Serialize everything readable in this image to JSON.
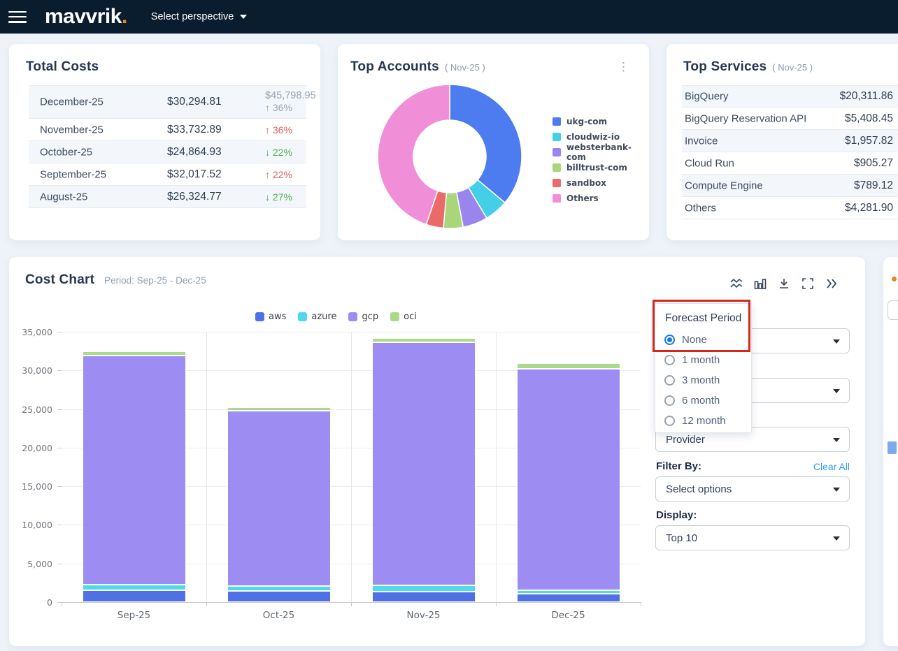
{
  "navbar": {
    "logo": "mavvrik",
    "logo_dot": ".",
    "perspective_label": "Select perspective"
  },
  "total_costs": {
    "title": "Total Costs",
    "rows": [
      {
        "month": "December-25",
        "amount": "$30,294.81",
        "forecast": "$45,798.95",
        "change": "↑ 36%",
        "tone": "muted"
      },
      {
        "month": "November-25",
        "amount": "$33,732.89",
        "change": "↑ 36%",
        "tone": "up"
      },
      {
        "month": "October-25",
        "amount": "$24,864.93",
        "change": "↓ 22%",
        "tone": "down"
      },
      {
        "month": "September-25",
        "amount": "$32,017.52",
        "change": "↑ 22%",
        "tone": "up"
      },
      {
        "month": "August-25",
        "amount": "$26,324.77",
        "change": "↓ 27%",
        "tone": "down"
      }
    ]
  },
  "top_accounts": {
    "title": "Top Accounts",
    "period": "( Nov-25 )",
    "menu_icon": "kebab-menu",
    "chart_data": {
      "type": "pie",
      "donut": true,
      "labels": [
        "ukg-com",
        "cloudwiz-io",
        "websterbank-com",
        "billtrust-com",
        "sandbox",
        "Others"
      ],
      "values_percent": [
        36.1,
        5.3,
        5.6,
        4.4,
        3.9,
        44.7
      ],
      "colors": [
        "#4C7CF0",
        "#44CFE8",
        "#9A85EE",
        "#A9D67A",
        "#E96A68",
        "#F08FD8"
      ],
      "start_angle_deg": 0,
      "legend_position": "right"
    }
  },
  "top_services": {
    "title": "Top Services",
    "period": "( Nov-25 )",
    "rows": [
      {
        "name": "BigQuery",
        "value": "$20,311.86"
      },
      {
        "name": "BigQuery Reservation API",
        "value": "$5,408.45"
      },
      {
        "name": "Invoice",
        "value": "$1,957.82"
      },
      {
        "name": "Cloud Run",
        "value": "$905.27"
      },
      {
        "name": "Compute Engine",
        "value": "$789.12"
      },
      {
        "name": "Others",
        "value": "$4,281.90"
      }
    ]
  },
  "cost_chart": {
    "title": "Cost Chart",
    "period_label": "Period: Sep-25 - Dec-25",
    "toolbar_icons": [
      "trend-lines-icon",
      "bar-chart-icon",
      "download-icon",
      "fullscreen-icon",
      "collapse-panel-icon"
    ],
    "chart_data": {
      "type": "bar",
      "stacked": true,
      "categories": [
        "Sep-25",
        "Oct-25",
        "Nov-25",
        "Dec-25"
      ],
      "series": [
        {
          "name": "aws",
          "color": "#5071E3",
          "values": [
            1500,
            1450,
            1400,
            1050
          ]
        },
        {
          "name": "azure",
          "color": "#4ED9EC",
          "values": [
            750,
            650,
            750,
            500
          ]
        },
        {
          "name": "gcp",
          "color": "#9D8DF2",
          "values": [
            29700,
            22700,
            31500,
            28650
          ]
        },
        {
          "name": "oci",
          "color": "#ABD98A",
          "values": [
            550,
            450,
            550,
            700
          ]
        }
      ],
      "ylim": [
        0,
        35000
      ],
      "ytick_step": 5000,
      "grid": true,
      "legend_position": "top"
    }
  },
  "filters": {
    "forecast_popup": {
      "title": "Forecast Period",
      "options": [
        "None",
        "1 month",
        "3 month",
        "6 month",
        "12 month"
      ],
      "selected": "None"
    },
    "group_select": "Provider",
    "filter_by_label": "Filter By:",
    "clear_all": "Clear All",
    "filter_select_value": "Select options",
    "display_label": "Display:",
    "display_select_value": "Top 10"
  },
  "annotation": {
    "shape": "red-rectangle",
    "color": "#D8251C",
    "target": "Forecast Period / None"
  },
  "colors": {
    "navbar_bg": "#0A1D2F",
    "page_bg": "#EEF3F9",
    "accent_orange": "#F28A1A",
    "link_blue": "#2D9CF4",
    "radio_blue": "#1976E8",
    "up_red": "#E35D5D",
    "down_green": "#4CAF50",
    "muted_gray": "#9AA3AE"
  }
}
